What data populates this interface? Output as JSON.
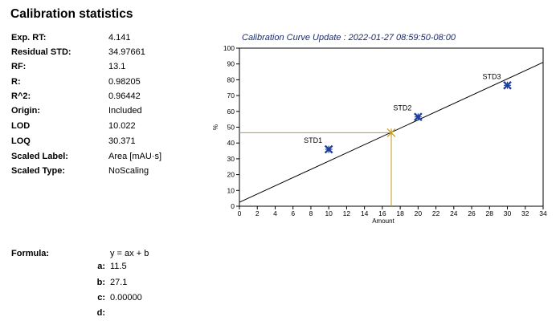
{
  "page_title": "Calibration statistics",
  "stats": [
    {
      "label": "Exp. RT:",
      "value": "4.141"
    },
    {
      "label": "Residual STD:",
      "value": "34.97661"
    },
    {
      "label": "RF:",
      "value": "13.1"
    },
    {
      "label": "R:",
      "value": "0.98205"
    },
    {
      "label": "R^2:",
      "value": "0.96442"
    },
    {
      "label": "Origin:",
      "value": "Included"
    },
    {
      "label": "LOD",
      "value": "10.022"
    },
    {
      "label": "LOQ",
      "value": "30.371"
    },
    {
      "label": "Scaled Label:",
      "value": "Area [mAU·s]"
    },
    {
      "label": "Scaled Type:",
      "value": "NoScaling"
    }
  ],
  "formula": {
    "label": "Formula:",
    "expression": "y = ax + b",
    "coefficients": [
      {
        "key": "a:",
        "value": "11.5"
      },
      {
        "key": "b:",
        "value": "27.1"
      },
      {
        "key": "c:",
        "value": "0.00000"
      },
      {
        "key": "d:",
        "value": ""
      }
    ]
  },
  "chart_data": {
    "type": "scatter",
    "title": "Calibration Curve Update : 2022-01-27 08:59:50-08:00",
    "xlabel": "Amount",
    "ylabel": "%",
    "xlim": [
      0,
      34
    ],
    "ylim": [
      0,
      100
    ],
    "xticks": [
      0,
      2,
      4,
      6,
      8,
      10,
      12,
      14,
      16,
      18,
      20,
      22,
      24,
      26,
      28,
      30,
      32,
      34
    ],
    "yticks": [
      0,
      10,
      20,
      30,
      40,
      50,
      60,
      70,
      80,
      90,
      100
    ],
    "points": [
      {
        "label": "STD1",
        "x": 10,
        "y": 36
      },
      {
        "label": "STD2",
        "x": 20,
        "y": 56.5
      },
      {
        "label": "STD3",
        "x": 30,
        "y": 76.5
      }
    ],
    "fit_line": {
      "x": [
        0,
        34
      ],
      "y": [
        2.5,
        91
      ]
    },
    "unknown_point": {
      "x": 17,
      "y": 46.5
    },
    "colors": {
      "frame": "#000000",
      "fit_line": "#000000",
      "point": "#1f3f99",
      "unknown": "#c89a1a",
      "title": "#1a2a6c"
    }
  }
}
